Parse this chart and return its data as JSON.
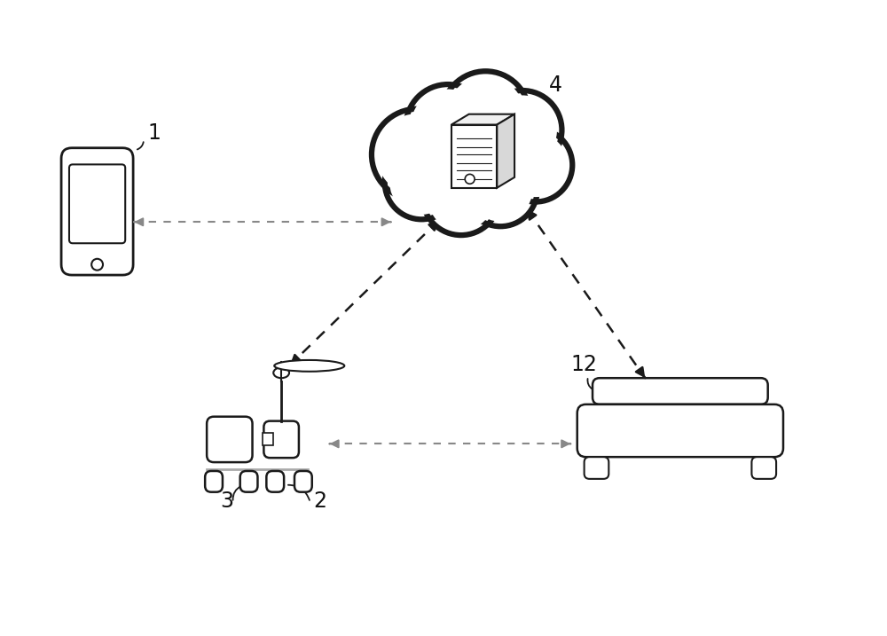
{
  "bg_color": "#ffffff",
  "line_color": "#1a1a1a",
  "arrow_solid_color": "#1a1a1a",
  "dashed_color": "#888888",
  "label_color": "#111111",
  "labels": {
    "phone": "1",
    "robot_body": "2",
    "robot_wheel": "3",
    "cloud": "4",
    "charger": "12"
  },
  "figsize": [
    10.0,
    7.17
  ],
  "dpi": 100
}
